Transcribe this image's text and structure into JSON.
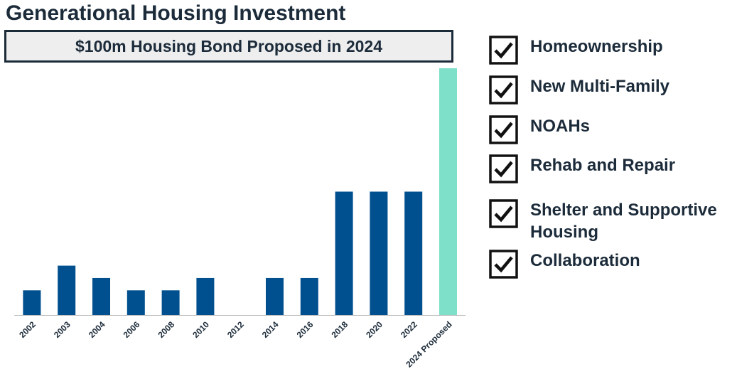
{
  "chart_data": {
    "type": "bar",
    "title": "Generational Housing Investment",
    "subtitle": "$100m Housing Bond Proposed in 2024",
    "categories": [
      "2002",
      "2003",
      "2004",
      "2006",
      "2008",
      "2010",
      "2012",
      "2014",
      "2016",
      "2018",
      "2020",
      "2022",
      "2024 Proposed"
    ],
    "values": [
      10,
      20,
      15,
      10,
      10,
      15,
      0,
      15,
      15,
      50,
      50,
      50,
      100
    ],
    "colors": [
      "#00508f",
      "#00508f",
      "#00508f",
      "#00508f",
      "#00508f",
      "#00508f",
      "#00508f",
      "#00508f",
      "#00508f",
      "#00508f",
      "#00508f",
      "#00508f",
      "#7ee0c8"
    ]
  },
  "checklist": [
    "Homeownership",
    "New Multi-Family",
    "NOAHs",
    "Rehab and Repair",
    "Shelter and Supportive Housing",
    "Collaboration"
  ]
}
